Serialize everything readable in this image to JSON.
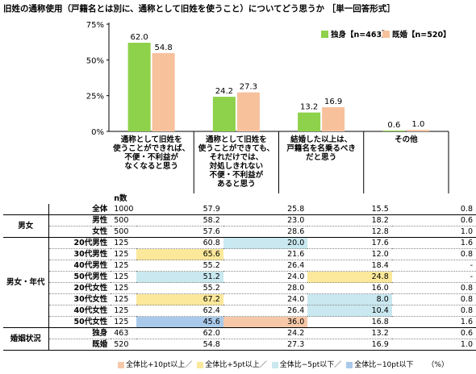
{
  "title": "旧姓の通称使用（戸籍名とは別に、通称として旧姓を使うこと）についてどう思うか ［単一回答形式］",
  "chart_data": {
    "type": "bar",
    "categories": [
      [
        "通称として旧姓を",
        "使うことができれば、",
        "不便・不利益が",
        "なくなると思う"
      ],
      [
        "通称として旧姓を",
        "使うことができても、",
        "それだけでは、",
        "対処しきれない",
        "不便・不利益が",
        "あると思う"
      ],
      [
        "結婚した以上は、",
        "戸籍名を名乗るべき",
        "だと思う"
      ],
      [
        "その他"
      ]
    ],
    "series": [
      {
        "name": "独身【n=463】",
        "color": "#8ed14a",
        "values": [
          62.0,
          24.2,
          13.2,
          0.6
        ]
      },
      {
        "name": "既婚【n=520】",
        "color": "#f7c19c",
        "values": [
          54.8,
          27.3,
          16.9,
          1.0
        ]
      }
    ],
    "value_labels": [
      [
        "62.0",
        "24.2",
        "13.2",
        "0.6"
      ],
      [
        "54.8",
        "27.3",
        "16.9",
        "1.0"
      ]
    ],
    "yticks": [
      "0%",
      "25%",
      "50%",
      "75%"
    ],
    "ylim": [
      0,
      75
    ]
  },
  "table": {
    "n_header": "n数",
    "groups": [
      {
        "label": "",
        "rows": [
          {
            "label": "全体",
            "n": "1000",
            "v": [
              "57.9",
              "25.8",
              "15.5",
              "0.8"
            ],
            "hl": [
              "",
              "",
              "",
              ""
            ]
          }
        ]
      },
      {
        "label": "男女",
        "rows": [
          {
            "label": "男性",
            "n": "500",
            "v": [
              "58.2",
              "23.0",
              "18.2",
              "0.6"
            ],
            "hl": [
              "",
              "",
              "",
              ""
            ]
          },
          {
            "label": "女性",
            "n": "500",
            "v": [
              "57.6",
              "28.6",
              "12.8",
              "1.0"
            ],
            "hl": [
              "",
              "",
              "",
              ""
            ]
          }
        ]
      },
      {
        "label": "男女・年代",
        "rows": [
          {
            "label": "20代男性",
            "n": "125",
            "v": [
              "60.8",
              "20.0",
              "17.6",
              "1.6"
            ],
            "hl": [
              "",
              "c",
              "",
              ""
            ]
          },
          {
            "label": "30代男性",
            "n": "125",
            "v": [
              "65.6",
              "21.6",
              "12.0",
              "0.8"
            ],
            "hl": [
              "y",
              "",
              "",
              ""
            ]
          },
          {
            "label": "40代男性",
            "n": "125",
            "v": [
              "55.2",
              "26.4",
              "18.4",
              "-"
            ],
            "hl": [
              "",
              "",
              "",
              ""
            ]
          },
          {
            "label": "50代男性",
            "n": "125",
            "v": [
              "51.2",
              "24.0",
              "24.8",
              "-"
            ],
            "hl": [
              "c",
              "",
              "y",
              ""
            ]
          },
          {
            "label": "20代女性",
            "n": "125",
            "v": [
              "55.2",
              "28.0",
              "16.0",
              "0.8"
            ],
            "hl": [
              "",
              "",
              "",
              ""
            ]
          },
          {
            "label": "30代女性",
            "n": "125",
            "v": [
              "67.2",
              "24.0",
              "8.0",
              "0.8"
            ],
            "hl": [
              "y",
              "",
              "c",
              ""
            ]
          },
          {
            "label": "40代女性",
            "n": "125",
            "v": [
              "62.4",
              "26.4",
              "10.4",
              "0.8"
            ],
            "hl": [
              "",
              "",
              "c",
              ""
            ]
          },
          {
            "label": "50代女性",
            "n": "125",
            "v": [
              "45.6",
              "36.0",
              "16.8",
              "1.6"
            ],
            "hl": [
              "b",
              "o",
              "",
              ""
            ]
          }
        ]
      },
      {
        "label": "婚姻状況",
        "rows": [
          {
            "label": "独身",
            "n": "463",
            "v": [
              "62.0",
              "24.2",
              "13.2",
              "0.6"
            ],
            "hl": [
              "",
              "",
              "",
              ""
            ]
          },
          {
            "label": "既婚",
            "n": "520",
            "v": [
              "54.8",
              "27.3",
              "16.9",
              "1.0"
            ],
            "hl": [
              "",
              "",
              "",
              ""
            ]
          }
        ]
      }
    ]
  },
  "highlight_legend": [
    {
      "key": "o",
      "label": "全体比+10pt以上／",
      "color": "#f7c8a8"
    },
    {
      "key": "y",
      "label": "全体比+5pt以上／",
      "color": "#fbe89a"
    },
    {
      "key": "c",
      "label": "全体比−5pt以下／",
      "color": "#c9e8f0"
    },
    {
      "key": "b",
      "label": "全体比−10pt以下",
      "color": "#a9c9ea"
    }
  ],
  "unit": "（%）"
}
